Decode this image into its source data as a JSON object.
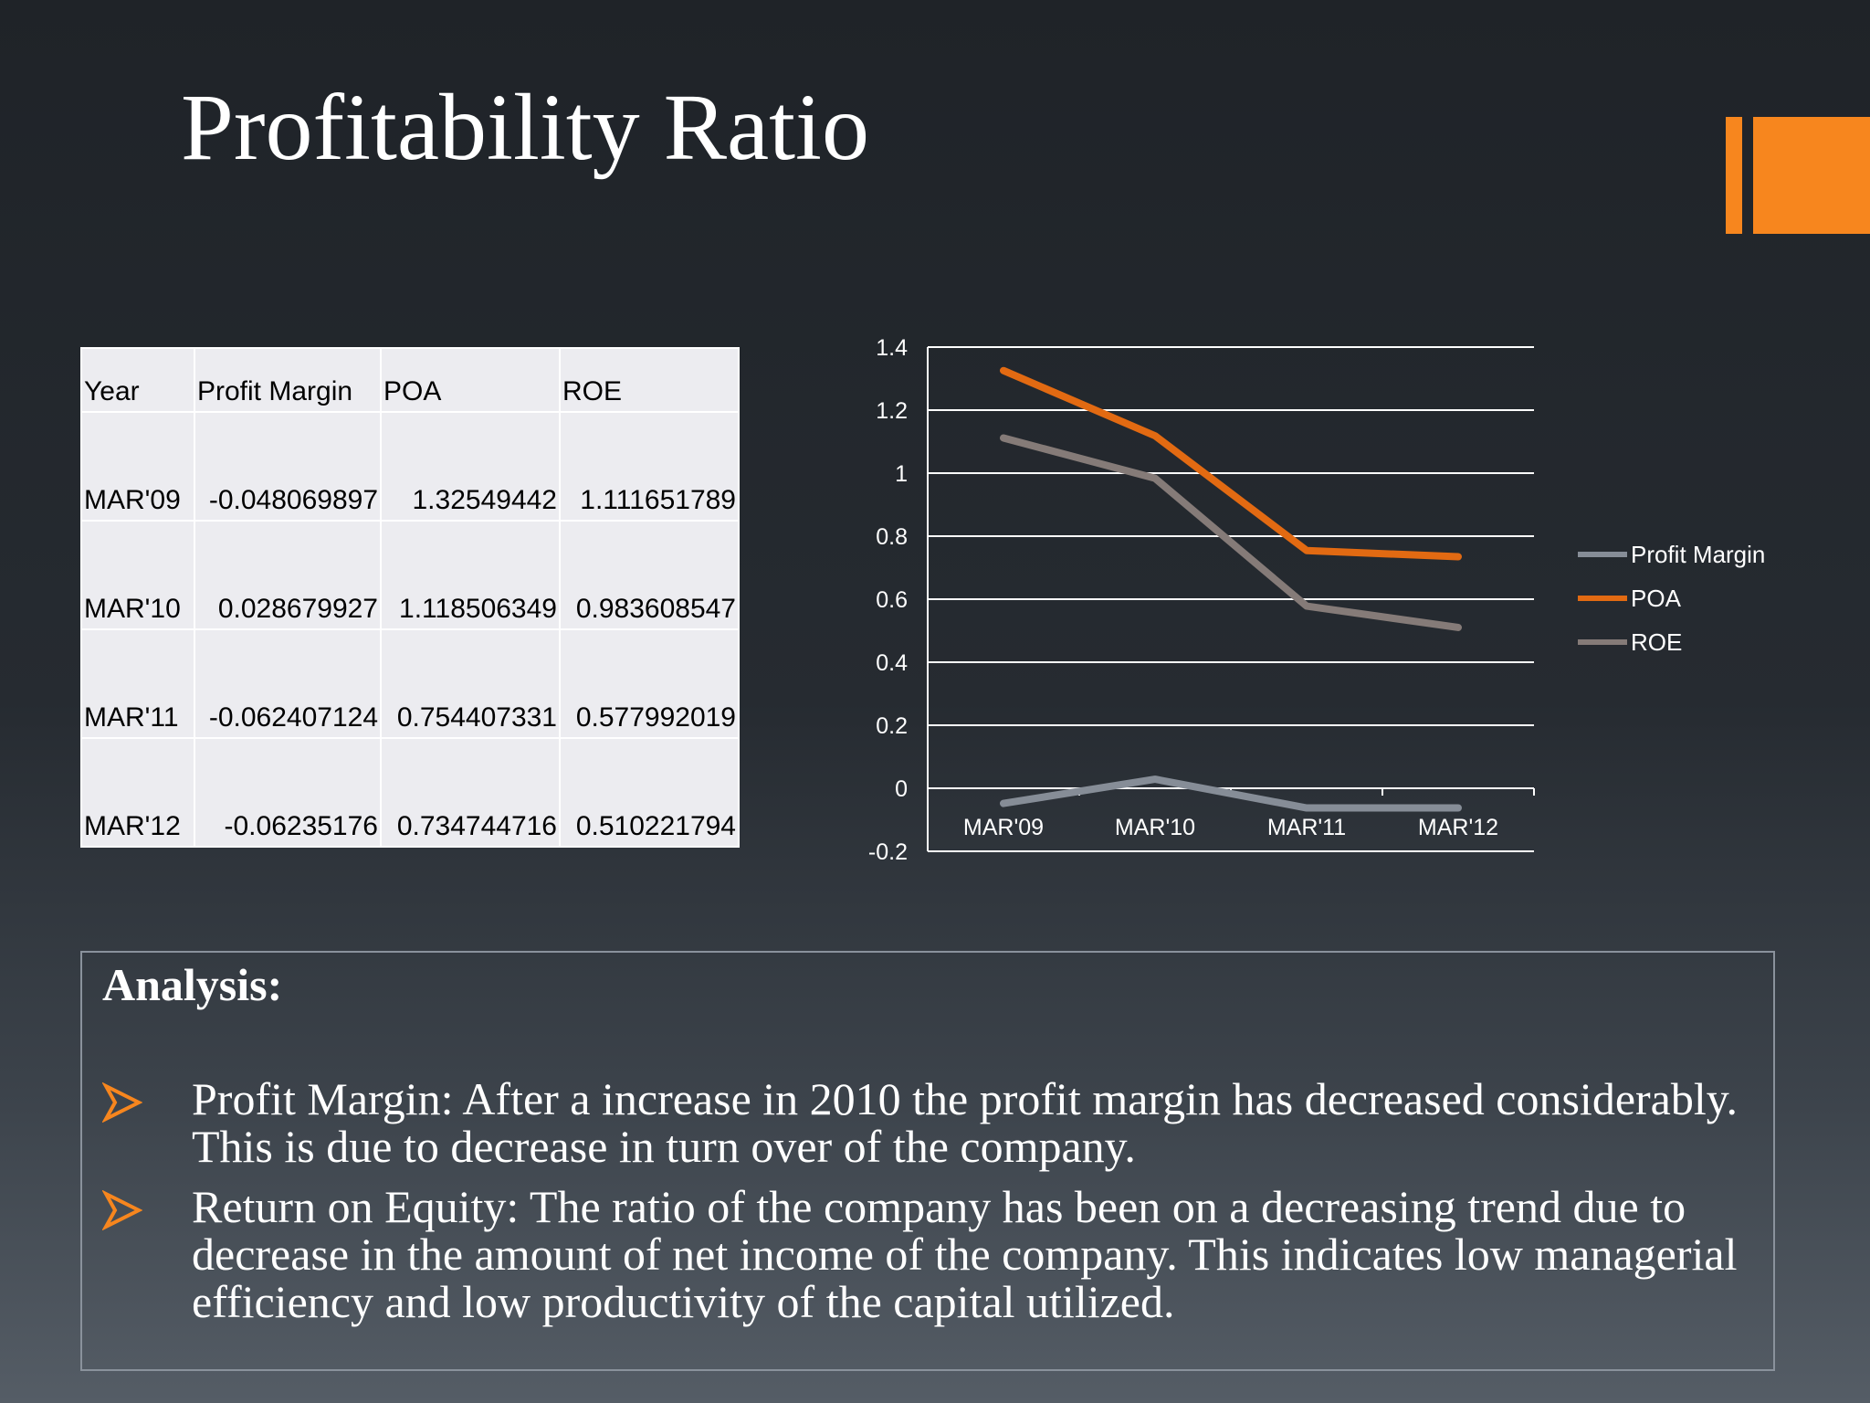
{
  "page": {
    "title": "Profitability Ratio"
  },
  "colors": {
    "accent": "#f7861e",
    "profit_margin": "#868d97",
    "poa": "#e26a12",
    "roe": "#857b78",
    "gridline": "#ffffff",
    "axis_text": "#ffffff"
  },
  "table": {
    "headers": [
      "Year",
      "Profit Margin",
      "POA",
      "ROE"
    ],
    "rows": [
      [
        "MAR'09",
        "-0.048069897",
        "1.32549442",
        "1.111651789"
      ],
      [
        "MAR'10",
        "0.028679927",
        "1.118506349",
        "0.983608547"
      ],
      [
        "MAR'11",
        "-0.062407124",
        "0.754407331",
        "0.577992019"
      ],
      [
        "MAR'12",
        "-0.06235176",
        "0.734744716",
        "0.510221794"
      ]
    ]
  },
  "chart_data": {
    "type": "line",
    "categories": [
      "MAR'09",
      "MAR'10",
      "MAR'11",
      "MAR'12"
    ],
    "series": [
      {
        "name": "Profit Margin",
        "values": [
          -0.048069897,
          0.028679927,
          -0.062407124,
          -0.06235176
        ]
      },
      {
        "name": "POA",
        "values": [
          1.32549442,
          1.118506349,
          0.754407331,
          0.734744716
        ]
      },
      {
        "name": "ROE",
        "values": [
          1.111651789,
          0.983608547,
          0.577992019,
          0.510221794
        ]
      }
    ],
    "ylim": [
      -0.2,
      1.4
    ],
    "yticks": [
      "1.4",
      "1.2",
      "1",
      "0.8",
      "0.6",
      "0.4",
      "0.2",
      "0",
      "-0.2"
    ],
    "grid": true,
    "legend": "right",
    "title": "",
    "xlabel": "",
    "ylabel": ""
  },
  "analysis": {
    "heading": "Analysis:",
    "bullets": [
      {
        "icon": "arrow-bullet-icon",
        "text": "Profit Margin: After a increase in 2010 the profit margin has decreased considerably. This is due to decrease in turn over  of the company."
      },
      {
        "icon": "arrow-bullet-icon",
        "text": "Return on Equity: The ratio of the company has been on a decreasing trend due to decrease in the   amount of  net income of the company. This indicates low managerial efficiency and low productivity of the capital utilized."
      }
    ]
  }
}
